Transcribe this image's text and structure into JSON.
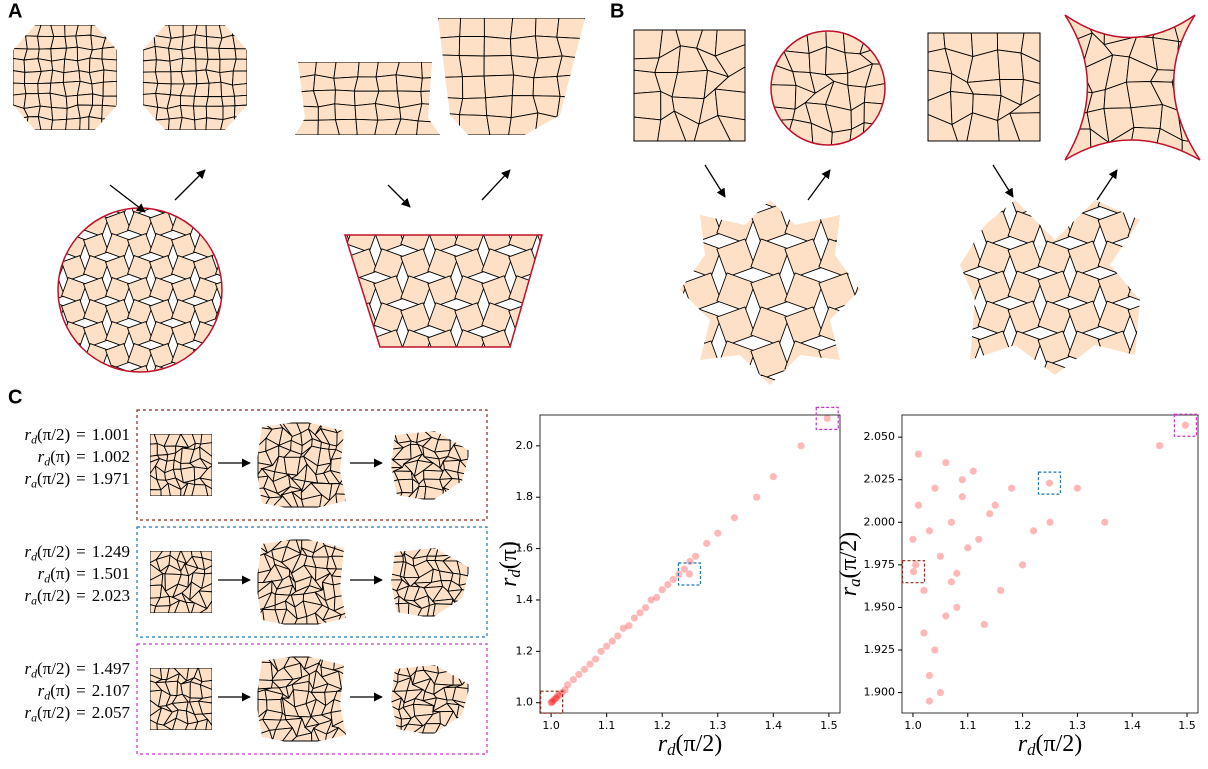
{
  "panels": {
    "A": {
      "label": "A"
    },
    "B": {
      "label": "B"
    },
    "C": {
      "label": "C"
    }
  },
  "examples": [
    {
      "color": "#8b2a1a",
      "lines": [
        {
          "symbol": "r",
          "sub": "d",
          "arg": "(π/2)",
          "relation": "=",
          "value": 1.001
        },
        {
          "symbol": "r",
          "sub": "d",
          "arg": "(π)",
          "relation": "=",
          "value": 1.002
        },
        {
          "symbol": "r",
          "sub": "a",
          "arg": "(π/2)",
          "relation": "=",
          "value": 1.971
        }
      ]
    },
    {
      "color": "#1f77b4",
      "lines": [
        {
          "symbol": "r",
          "sub": "d",
          "arg": "(π/2)",
          "relation": "=",
          "value": 1.249
        },
        {
          "symbol": "r",
          "sub": "d",
          "arg": "(π)",
          "relation": "=",
          "value": 1.501
        },
        {
          "symbol": "r",
          "sub": "a",
          "arg": "(π/2)",
          "relation": "=",
          "value": 2.023
        }
      ]
    },
    {
      "color": "#cc33cc",
      "lines": [
        {
          "symbol": "r",
          "sub": "d",
          "arg": "(π/2)",
          "relation": "=",
          "value": 1.497
        },
        {
          "symbol": "r",
          "sub": "d",
          "arg": "(π)",
          "relation": "=",
          "value": 2.107
        },
        {
          "symbol": "r",
          "sub": "a",
          "arg": "(π/2)",
          "relation": "=",
          "value": 2.057
        }
      ]
    }
  ],
  "chart_data": [
    {
      "type": "scatter",
      "color": "#ff0000",
      "xlabel": {
        "symbol": "r",
        "sub": "d",
        "arg": "(π/2)"
      },
      "ylabel": {
        "symbol": "r",
        "sub": "d",
        "arg": "(π)"
      },
      "xlim": [
        0.98,
        1.52
      ],
      "ylim": [
        0.96,
        2.12
      ],
      "xticks": [
        {
          "value": 1,
          "label": "1.0"
        },
        1.1,
        1.2,
        1.3,
        1.4,
        1.5
      ],
      "yticks": [
        {
          "value": 1,
          "label": "1.0"
        },
        1.2,
        1.4,
        1.6,
        1.8,
        {
          "value": 2,
          "label": "2.0"
        }
      ],
      "x": [
        1.0,
        1.003,
        1.005,
        1.008,
        1.01,
        1.012,
        1.015,
        1.02,
        1.025,
        1.03,
        1.04,
        1.05,
        1.06,
        1.07,
        1.08,
        1.09,
        1.1,
        1.11,
        1.12,
        1.13,
        1.14,
        1.15,
        1.16,
        1.17,
        1.18,
        1.19,
        1.2,
        1.21,
        1.22,
        1.23,
        1.24,
        1.25,
        1.26,
        1.28,
        1.3,
        1.33,
        1.37,
        1.4,
        1.45,
        1.001,
        1.249,
        1.497
      ],
      "y": [
        1.0,
        1.005,
        1.012,
        1.016,
        1.02,
        1.03,
        1.03,
        1.04,
        1.05,
        1.07,
        1.09,
        1.11,
        1.13,
        1.15,
        1.17,
        1.2,
        1.22,
        1.24,
        1.26,
        1.29,
        1.3,
        1.33,
        1.35,
        1.37,
        1.4,
        1.41,
        1.44,
        1.46,
        1.48,
        1.5,
        1.52,
        1.55,
        1.57,
        1.62,
        1.66,
        1.72,
        1.8,
        1.88,
        2.0,
        1.002,
        1.501,
        2.107
      ]
    },
    {
      "type": "scatter",
      "color": "#ff0000",
      "xlabel": {
        "symbol": "r",
        "sub": "d",
        "arg": "(π/2)"
      },
      "ylabel": {
        "symbol": "r",
        "sub": "a",
        "arg": "(π/2)"
      },
      "xlim": [
        0.98,
        1.52
      ],
      "ylim": [
        1.888,
        2.063
      ],
      "xticks": [
        {
          "value": 1,
          "label": "1.0"
        },
        1.1,
        1.2,
        1.3,
        1.4,
        1.5
      ],
      "yticks": [
        {
          "value": 1.9,
          "label": "1.900"
        },
        1.925,
        {
          "value": 1.95,
          "label": "1.950"
        },
        1.975,
        {
          "value": 2,
          "label": "2.000"
        },
        2.025,
        {
          "value": 2.05,
          "label": "2.050"
        }
      ],
      "x": [
        1.0,
        1.005,
        1.01,
        1.02,
        1.03,
        1.04,
        1.05,
        1.06,
        1.07,
        1.08,
        1.09,
        1.1,
        1.12,
        1.14,
        1.16,
        1.18,
        1.2,
        1.22,
        1.02,
        1.04,
        1.06,
        1.08,
        1.01,
        1.03,
        1.05,
        1.11,
        1.13,
        1.15,
        1.25,
        1.3,
        1.35,
        1.45,
        1.03,
        1.07,
        1.09,
        1.001,
        1.249,
        1.497
      ],
      "y": [
        1.99,
        1.975,
        2.01,
        1.96,
        1.995,
        2.02,
        1.98,
        1.945,
        2.0,
        1.97,
        2.015,
        1.985,
        1.99,
        2.005,
        1.96,
        2.02,
        1.975,
        1.995,
        1.935,
        1.925,
        2.035,
        1.95,
        2.04,
        1.91,
        1.9,
        2.03,
        1.94,
        2.01,
        2.0,
        2.02,
        2.0,
        2.045,
        1.895,
        1.965,
        2.025,
        1.971,
        2.023,
        2.057
      ]
    }
  ]
}
